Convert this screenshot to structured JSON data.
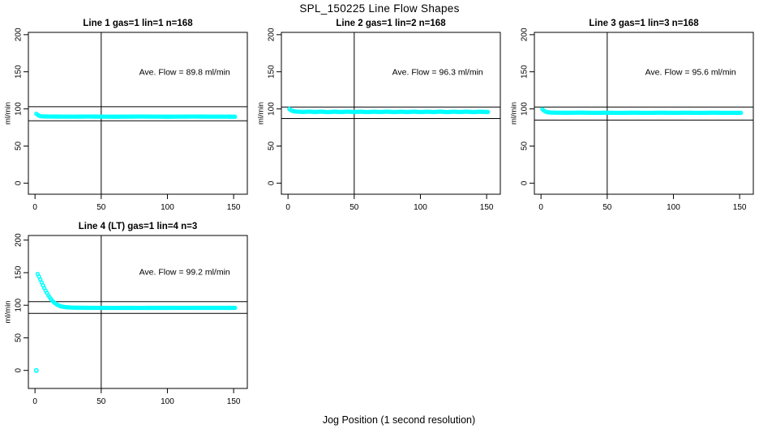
{
  "main_title": "SPL_150225  Line Flow Shapes",
  "x_axis_label": "Jog Position (1 second resolution)",
  "marker_color": "#00FFFF",
  "axis_color": "#000000",
  "chart_data": [
    {
      "type": "scatter",
      "title": "Line 1 gas=1 lin=1 n=168",
      "annotation": "Ave. Flow =  89.8  ml/min",
      "ave_flow": 89.8,
      "ylabel": "ml/min",
      "x_ticks": [
        0,
        50,
        100,
        150
      ],
      "y_ticks": [
        0,
        50,
        100,
        150,
        200
      ],
      "xlim": [
        0,
        152
      ],
      "ylim": [
        0,
        200
      ],
      "vline_x": 50,
      "hlines": [
        103,
        84
      ],
      "annotation_pos": [
        113,
        146
      ],
      "points": [
        [
          1,
          93.5
        ],
        [
          2,
          92
        ],
        [
          3,
          91
        ],
        [
          4,
          90.3
        ],
        [
          5,
          90
        ],
        [
          8,
          89.8
        ],
        [
          12,
          89.7
        ],
        [
          20,
          89.6
        ],
        [
          30,
          89.6
        ],
        [
          40,
          89.7
        ],
        [
          50,
          89.6
        ],
        [
          60,
          89.5
        ],
        [
          70,
          89.6
        ],
        [
          80,
          89.7
        ],
        [
          90,
          89.6
        ],
        [
          100,
          89.5
        ],
        [
          110,
          89.6
        ],
        [
          120,
          89.7
        ],
        [
          130,
          89.6
        ],
        [
          140,
          89.6
        ],
        [
          150,
          89.5
        ],
        [
          151,
          89.5
        ]
      ]
    },
    {
      "type": "scatter",
      "title": "Line 2 gas=1 lin=2 n=168",
      "annotation": "Ave. Flow =  96.3  ml/min",
      "ave_flow": 96.3,
      "ylabel": "ml/min",
      "x_ticks": [
        0,
        50,
        100,
        150
      ],
      "y_ticks": [
        0,
        50,
        100,
        150,
        200
      ],
      "xlim": [
        0,
        152
      ],
      "ylim": [
        0,
        200
      ],
      "vline_x": 50,
      "hlines": [
        102.5,
        87
      ],
      "annotation_pos": [
        113,
        146
      ],
      "points": [
        [
          1,
          100
        ],
        [
          2,
          98.5
        ],
        [
          3,
          97.5
        ],
        [
          4,
          97
        ],
        [
          5,
          96.6
        ],
        [
          8,
          96.2
        ],
        [
          12,
          96.0
        ],
        [
          16,
          96.4
        ],
        [
          20,
          95.8
        ],
        [
          25,
          96.3
        ],
        [
          30,
          95.7
        ],
        [
          35,
          96.2
        ],
        [
          40,
          95.8
        ],
        [
          45,
          96.3
        ],
        [
          50,
          95.8
        ],
        [
          55,
          96.2
        ],
        [
          60,
          95.7
        ],
        [
          65,
          96.2
        ],
        [
          70,
          95.8
        ],
        [
          75,
          96.3
        ],
        [
          80,
          95.7
        ],
        [
          85,
          96.2
        ],
        [
          90,
          95.8
        ],
        [
          95,
          96.3
        ],
        [
          100,
          95.7
        ],
        [
          105,
          96.2
        ],
        [
          110,
          95.8
        ],
        [
          115,
          96.3
        ],
        [
          120,
          95.7
        ],
        [
          125,
          96.2
        ],
        [
          130,
          95.8
        ],
        [
          135,
          96.3
        ],
        [
          140,
          95.7
        ],
        [
          145,
          96.2
        ],
        [
          150,
          95.9
        ],
        [
          151,
          95.9
        ]
      ]
    },
    {
      "type": "scatter",
      "title": "Line 3 gas=1 lin=3 n=168",
      "annotation": "Ave. Flow =  95.6  ml/min",
      "ave_flow": 95.6,
      "ylabel": "ml/min",
      "x_ticks": [
        0,
        50,
        100,
        150
      ],
      "y_ticks": [
        0,
        50,
        100,
        150,
        200
      ],
      "xlim": [
        0,
        152
      ],
      "ylim": [
        0,
        200
      ],
      "vline_x": 50,
      "hlines": [
        102.5,
        85
      ],
      "annotation_pos": [
        113,
        146
      ],
      "points": [
        [
          1,
          99.5
        ],
        [
          2,
          98
        ],
        [
          3,
          96.8
        ],
        [
          4,
          96
        ],
        [
          5,
          95.5
        ],
        [
          8,
          95.1
        ],
        [
          12,
          94.9
        ],
        [
          20,
          94.8
        ],
        [
          30,
          95.0
        ],
        [
          40,
          94.7
        ],
        [
          50,
          94.9
        ],
        [
          60,
          94.7
        ],
        [
          70,
          94.9
        ],
        [
          80,
          94.7
        ],
        [
          90,
          94.9
        ],
        [
          100,
          94.7
        ],
        [
          110,
          94.9
        ],
        [
          120,
          94.7
        ],
        [
          130,
          94.9
        ],
        [
          140,
          94.7
        ],
        [
          150,
          94.8
        ],
        [
          151,
          94.8
        ]
      ]
    },
    {
      "type": "scatter",
      "title": "Line 4 (LT) gas=1 lin=4 n=3",
      "annotation": "Ave. Flow =  99.2  ml/min",
      "ave_flow": 99.2,
      "ylabel": "ml/min",
      "x_ticks": [
        0,
        50,
        100,
        150
      ],
      "y_ticks": [
        0,
        50,
        100,
        150,
        200
      ],
      "xlim": [
        0,
        152
      ],
      "ylim": [
        0,
        200
      ],
      "vline_x": 50,
      "hlines": [
        105.5,
        87.5
      ],
      "annotation_pos": [
        113,
        147
      ],
      "points": [
        [
          2,
          148
        ],
        [
          3,
          144
        ],
        [
          4,
          139.5
        ],
        [
          5,
          135
        ],
        [
          6,
          130.5
        ],
        [
          7,
          126.5
        ],
        [
          8,
          122.5
        ],
        [
          9,
          119
        ],
        [
          10,
          115.5
        ],
        [
          11,
          112.5
        ],
        [
          12,
          109.5
        ],
        [
          13,
          107
        ],
        [
          14,
          105
        ],
        [
          15,
          103.3
        ],
        [
          16,
          101.8
        ],
        [
          17,
          100.6
        ],
        [
          18,
          99.6
        ],
        [
          19,
          98.8
        ],
        [
          20,
          98.2
        ],
        [
          22,
          97.4
        ],
        [
          24,
          96.9
        ],
        [
          26,
          96.6
        ],
        [
          28,
          96.4
        ],
        [
          30,
          96.3
        ],
        [
          35,
          96.2
        ],
        [
          40,
          96.1
        ],
        [
          50,
          96.0
        ],
        [
          60,
          95.9
        ],
        [
          70,
          96.0
        ],
        [
          80,
          95.9
        ],
        [
          90,
          96.0
        ],
        [
          100,
          96.0
        ],
        [
          110,
          96.1
        ],
        [
          120,
          96.0
        ],
        [
          130,
          96.1
        ],
        [
          140,
          96.0
        ],
        [
          150,
          96.0
        ],
        [
          151,
          96.0
        ]
      ],
      "outlier_points": [
        [
          1,
          0
        ]
      ]
    }
  ]
}
